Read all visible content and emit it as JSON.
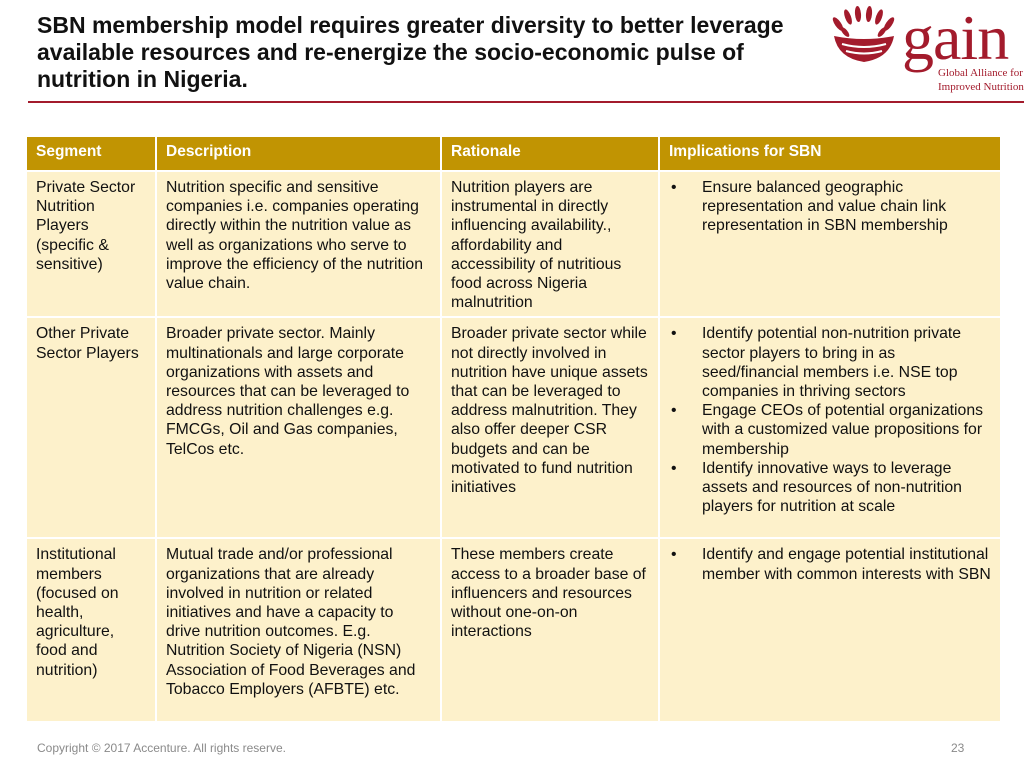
{
  "title": "SBN membership model requires greater diversity to better leverage available resources and re-energize the socio-economic pulse of nutrition in Nigeria.",
  "logo": {
    "word": "gain",
    "subtitle_line1": "Global Alliance for",
    "subtitle_line2": "Improved Nutrition",
    "color": "#a31b2c"
  },
  "table": {
    "headers": [
      "Segment",
      "Description",
      "Rationale",
      "Implications for SBN"
    ],
    "rows": [
      {
        "segment": "Private Sector Nutrition Players (specific & sensitive)",
        "description": "Nutrition specific and sensitive companies  i.e. companies operating directly within the nutrition value as well as organizations who serve to improve the efficiency of the nutrition value chain.",
        "rationale": "Nutrition players are instrumental in directly influencing availability., affordability and accessibility of nutritious food across Nigeria malnutrition",
        "implications": [
          "Ensure  balanced geographic representation and value chain link representation in SBN membership"
        ]
      },
      {
        "segment": "Other Private Sector Players",
        "description": "Broader private sector. Mainly multinationals and large corporate organizations with assets and resources that can be leveraged to address nutrition challenges e.g. FMCGs, Oil and Gas companies, TelCos etc.",
        "rationale": "Broader private sector while not directly involved in nutrition have unique assets that can be leveraged to address malnutrition. They also offer deeper CSR budgets and can be motivated to fund nutrition initiatives",
        "implications": [
          "Identify potential non-nutrition private sector  players to bring in as seed/financial members i.e. NSE top companies in thriving sectors",
          "Engage  CEOs of potential organizations with a customized value propositions for membership",
          "Identify innovative ways to leverage assets and resources of non-nutrition players for nutrition at scale"
        ]
      },
      {
        "segment": "Institutional members (focused on health, agriculture, food and nutrition)",
        "description": "Mutual trade and/or professional organizations that are already involved in nutrition or related initiatives and have a capacity to drive nutrition outcomes. E.g. Nutrition Society of Nigeria (NSN) Association of Food Beverages and Tobacco Employers (AFBTE) etc.",
        "rationale": "These members create access to a broader base of influencers and resources without one-on-on interactions",
        "implications": [
          "Identify and engage potential institutional member with common interests with SBN"
        ]
      }
    ]
  },
  "footer": {
    "copyright": "Copyright © 2017 Accenture. All rights reserve.",
    "page_number": "23"
  },
  "colors": {
    "header_bg": "#c19402",
    "cell_bg": "#fdf1cb",
    "accent": "#a31b2c"
  }
}
